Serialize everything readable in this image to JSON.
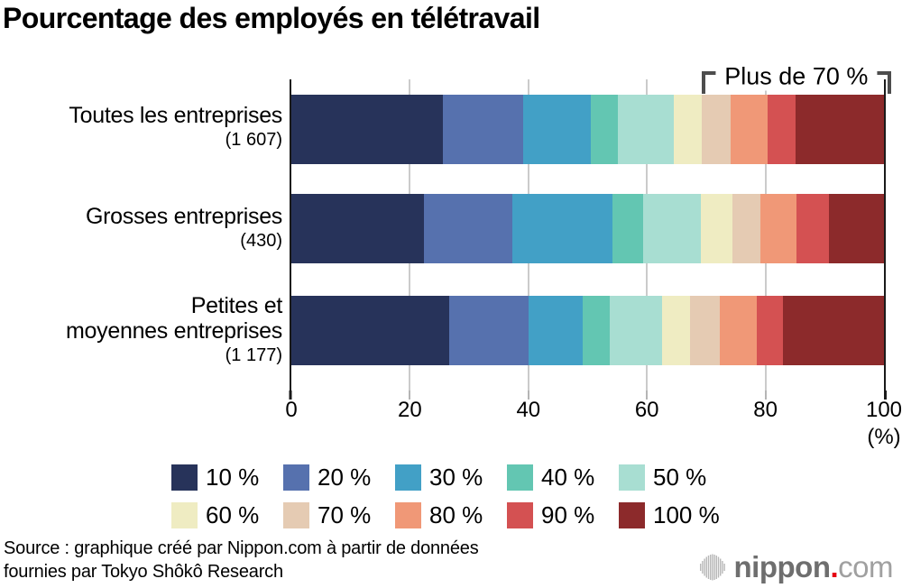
{
  "title": "Pourcentage des employés en télétravail",
  "chart_data": {
    "type": "bar",
    "orientation": "horizontal",
    "stacked": true,
    "title": "Pourcentage des employés en télétravail",
    "xlabel": "(%)",
    "xlim": [
      0,
      100
    ],
    "x_ticks": [
      0,
      20,
      40,
      60,
      80,
      100
    ],
    "grid": true,
    "legend_position": "bottom",
    "categories": [
      "Toutes les entreprises",
      "Grosses entreprises",
      "Petites et moyennes entreprises"
    ],
    "legend": [
      "10 %",
      "20 %",
      "30 %",
      "40 %",
      "50 %",
      "60 %",
      "70 %",
      "80 %",
      "90 %",
      "100 %"
    ],
    "colors": [
      "#27335a",
      "#5671ae",
      "#42a0c6",
      "#63c6b2",
      "#a8ded2",
      "#efecc2",
      "#e5cbb3",
      "#f09877",
      "#d45152",
      "#8c2a2b"
    ],
    "axis_color": "#1a1a1a",
    "grid_color": "#cbcbcb",
    "annotation": "Plus de 70 %",
    "annotation_color": "#4d4d4d",
    "annotation_span_pct": [
      69.2,
      100
    ],
    "series": [
      {
        "name": "Toutes les entreprises",
        "count_label": "(1 607)",
        "label_lines": [
          "Toutes les entreprises"
        ],
        "values": [
          25.5,
          13.6,
          11.4,
          4.6,
          9.5,
          4.6,
          5.0,
          6.1,
          4.8,
          14.9
        ]
      },
      {
        "name": "Grosses entreprises",
        "count_label": "(430)",
        "label_lines": [
          "Grosses entreprises"
        ],
        "values": [
          22.3,
          15.0,
          16.9,
          5.2,
          9.7,
          5.3,
          4.8,
          6.1,
          5.4,
          9.3
        ]
      },
      {
        "name": "Petites et moyennes entreprises",
        "count_label": "(1 177)",
        "label_lines": [
          "Petites et",
          "moyennes entreprises"
        ],
        "values": [
          26.7,
          13.3,
          9.2,
          4.6,
          8.8,
          4.7,
          5.0,
          6.3,
          4.4,
          17.0
        ]
      }
    ]
  },
  "footer": {
    "source_line1": "Source : graphique créé par Nippon.com à partir de données",
    "source_line2": "fournies par Tokyo Shôkô Research",
    "logo": {
      "name": "nippon.com",
      "icon": "soundwave-bars-icon",
      "text_bold": "nippon",
      "text_dot": ".",
      "text_light": "com",
      "dot_color": "#e60012"
    }
  }
}
